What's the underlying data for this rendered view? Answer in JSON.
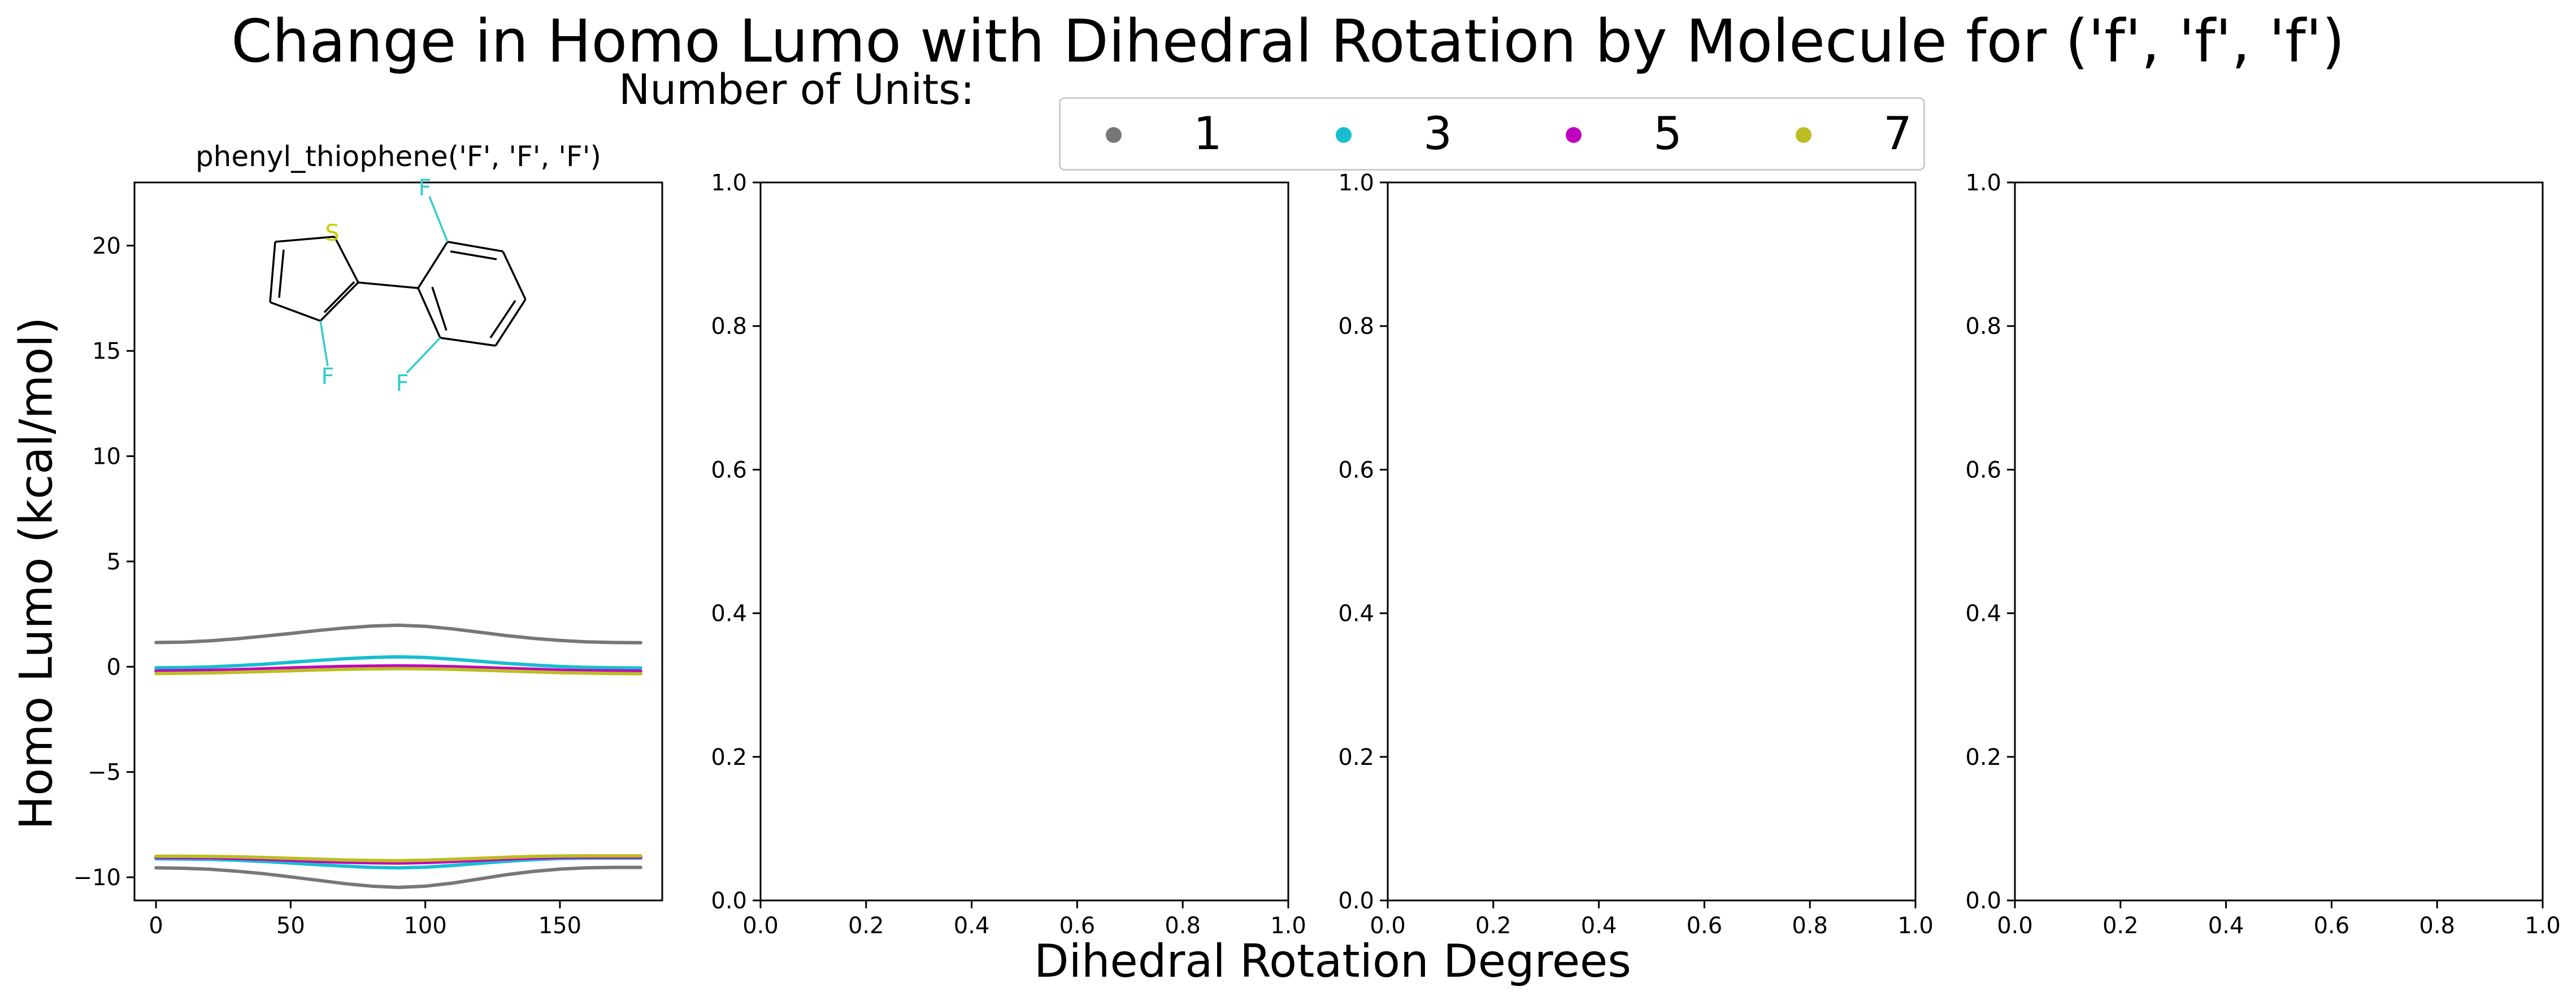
{
  "figure": {
    "title": "Change in Homo Lumo with Dihedral Rotation by Molecule for ('f', 'f', 'f')",
    "legend_title": "Number of Units:",
    "xlabel": "Dihedral Rotation Degrees",
    "ylabel": "Homo Lumo (kcal/mol)"
  },
  "legend": [
    {
      "label": "1",
      "color": "#777777"
    },
    {
      "label": "3",
      "color": "#17becf"
    },
    {
      "label": "5",
      "color": "#bf00bf"
    },
    {
      "label": "7",
      "color": "#bcbd22"
    }
  ],
  "chart_data": [
    {
      "type": "line",
      "title": "phenyl_thiophene('F', 'F', 'F')",
      "xlim": [
        -8,
        188
      ],
      "ylim": [
        -11.1,
        23
      ],
      "xticks": [
        0,
        50,
        100,
        150
      ],
      "yticks": [
        -10,
        -5,
        0,
        5,
        10,
        15,
        20
      ],
      "x": [
        0,
        10,
        20,
        30,
        40,
        50,
        60,
        70,
        80,
        90,
        100,
        110,
        120,
        130,
        140,
        150,
        160,
        170,
        180
      ],
      "series": [
        {
          "name": "1",
          "color": "#777777",
          "values": [
            1.15,
            1.17,
            1.23,
            1.33,
            1.45,
            1.58,
            1.72,
            1.84,
            1.93,
            1.97,
            1.92,
            1.8,
            1.64,
            1.48,
            1.35,
            1.25,
            1.18,
            1.15,
            1.14
          ]
        },
        {
          "name": "3",
          "color": "#17becf",
          "values": [
            -0.05,
            -0.04,
            -0.01,
            0.05,
            0.12,
            0.21,
            0.3,
            0.38,
            0.44,
            0.47,
            0.44,
            0.36,
            0.26,
            0.16,
            0.08,
            0.01,
            -0.03,
            -0.05,
            -0.06
          ]
        },
        {
          "name": "5",
          "color": "#bf00bf",
          "values": [
            -0.2,
            -0.19,
            -0.17,
            -0.14,
            -0.1,
            -0.06,
            -0.02,
            0.01,
            0.03,
            0.04,
            0.03,
            0.0,
            -0.04,
            -0.08,
            -0.12,
            -0.16,
            -0.19,
            -0.2,
            -0.21
          ]
        },
        {
          "name": "7",
          "color": "#bcbd22",
          "values": [
            -0.32,
            -0.31,
            -0.29,
            -0.26,
            -0.23,
            -0.19,
            -0.15,
            -0.12,
            -0.1,
            -0.09,
            -0.1,
            -0.12,
            -0.16,
            -0.2,
            -0.24,
            -0.28,
            -0.3,
            -0.32,
            -0.33
          ]
        },
        {
          "name": "1",
          "color": "#777777",
          "values": [
            -9.55,
            -9.57,
            -9.62,
            -9.71,
            -9.83,
            -9.98,
            -10.14,
            -10.3,
            -10.42,
            -10.48,
            -10.42,
            -10.28,
            -10.08,
            -9.88,
            -9.72,
            -9.61,
            -9.55,
            -9.53,
            -9.53
          ]
        },
        {
          "name": "3",
          "color": "#17becf",
          "values": [
            -9.12,
            -9.13,
            -9.15,
            -9.19,
            -9.25,
            -9.32,
            -9.4,
            -9.47,
            -9.53,
            -9.55,
            -9.52,
            -9.44,
            -9.34,
            -9.24,
            -9.16,
            -9.11,
            -9.09,
            -9.09,
            -9.09
          ]
        },
        {
          "name": "5",
          "color": "#bf00bf",
          "values": [
            -9.05,
            -9.06,
            -9.07,
            -9.1,
            -9.14,
            -9.19,
            -9.24,
            -9.28,
            -9.31,
            -9.32,
            -9.3,
            -9.25,
            -9.19,
            -9.13,
            -9.08,
            -9.05,
            -9.04,
            -9.04,
            -9.04
          ]
        },
        {
          "name": "7",
          "color": "#bcbd22",
          "values": [
            -9.0,
            -9.0,
            -9.01,
            -9.03,
            -9.06,
            -9.1,
            -9.14,
            -9.18,
            -9.2,
            -9.21,
            -9.19,
            -9.15,
            -9.1,
            -9.05,
            -9.01,
            -8.99,
            -8.98,
            -8.98,
            -8.98
          ]
        }
      ],
      "molecule": {
        "atom_labels": [
          "S",
          "F",
          "F",
          "F"
        ],
        "atom_colors": {
          "S": "#cccc00",
          "F": "#33cccc"
        }
      }
    },
    {
      "type": "line",
      "xlim": [
        0,
        1
      ],
      "ylim": [
        0,
        1
      ],
      "xticks": [
        "0.0",
        "0.2",
        "0.4",
        "0.6",
        "0.8",
        "1.0"
      ],
      "yticks": [
        "0.0",
        "0.2",
        "0.4",
        "0.6",
        "0.8",
        "1.0"
      ],
      "series": []
    },
    {
      "type": "line",
      "xlim": [
        0,
        1
      ],
      "ylim": [
        0,
        1
      ],
      "xticks": [
        "0.0",
        "0.2",
        "0.4",
        "0.6",
        "0.8",
        "1.0"
      ],
      "yticks": [
        "0.0",
        "0.2",
        "0.4",
        "0.6",
        "0.8",
        "1.0"
      ],
      "series": []
    },
    {
      "type": "line",
      "xlim": [
        0,
        1
      ],
      "ylim": [
        0,
        1
      ],
      "xticks": [
        "0.0",
        "0.2",
        "0.4",
        "0.6",
        "0.8",
        "1.0"
      ],
      "yticks": [
        "0.0",
        "0.2",
        "0.4",
        "0.6",
        "0.8",
        "1.0"
      ],
      "series": []
    }
  ]
}
